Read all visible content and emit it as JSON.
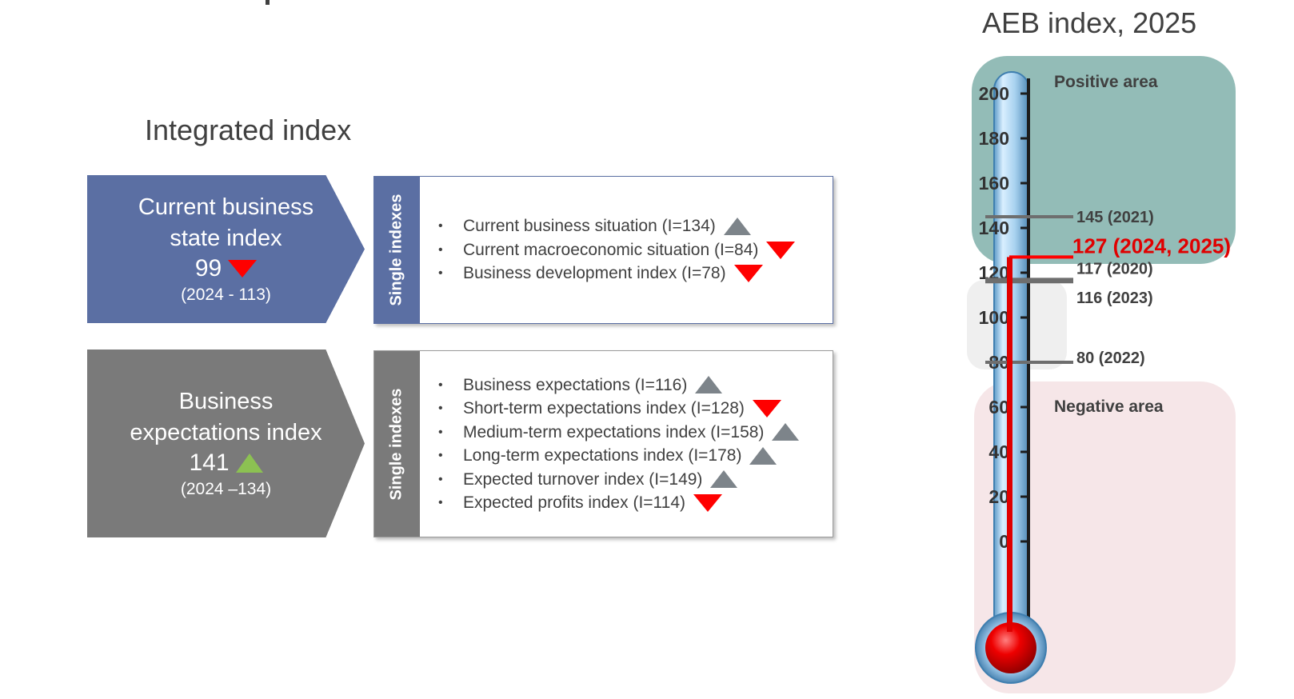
{
  "aeb_title": "AEB index, 2025",
  "section_title": "Integrated index",
  "current_state": {
    "title_line1": "Current business",
    "title_line2": "state index",
    "value": "99",
    "trend": "down",
    "previous": "(2024 - 113)",
    "color": "#5b6fa3"
  },
  "expectations": {
    "title_line1": "Business",
    "title_line2": "expectations index",
    "value": "141",
    "trend": "up",
    "previous": "(2024 –134)",
    "color": "#7a7a7a"
  },
  "single_label": "Single indexes",
  "current_items": [
    {
      "text": "Current business situation (I=134)",
      "trend": "up"
    },
    {
      "text": "Current macroeconomic situation (I=84)",
      "trend": "down"
    },
    {
      "text": "Business development index (I=78)",
      "trend": "down"
    }
  ],
  "expectation_items": [
    {
      "text": "Business expectations (I=116)",
      "trend": "up"
    },
    {
      "text": "Short-term expectations index (I=128)",
      "trend": "down"
    },
    {
      "text": "Medium-term expectations index (I=158)",
      "trend": "up"
    },
    {
      "text": "Long-term expectations index (I=178)",
      "trend": "up"
    },
    {
      "text": "Expected turnover index (I=149)",
      "trend": "up"
    },
    {
      "text": "Expected profits index (I=114)",
      "trend": "down"
    }
  ],
  "thermometer": {
    "positive_label": "Positive area",
    "negative_label": "Negative area",
    "ticks": [
      "200",
      "180",
      "160",
      "140",
      "120",
      "100",
      "80",
      "60",
      "40",
      "20",
      "0"
    ],
    "markers": [
      {
        "value": 145,
        "label": "145 (2021)",
        "color": "#6e6e6e"
      },
      {
        "value": 127,
        "label": "127 (2024, 2025)",
        "color": "#ff0000"
      },
      {
        "value": 117,
        "label": "117 (2020)",
        "color": "#6e6e6e"
      },
      {
        "value": 116,
        "label": "116 (2023)",
        "color": "#6e6e6e"
      },
      {
        "value": 80,
        "label": "80 (2022)",
        "color": "#6e6e6e"
      }
    ],
    "current_value": 127,
    "colors": {
      "positive_area": "#93bcb7",
      "negative_area": "#f6e6e8",
      "neutral_area": "#efefef",
      "mercury": "#e00000",
      "tube": "#bfe0f5"
    }
  }
}
